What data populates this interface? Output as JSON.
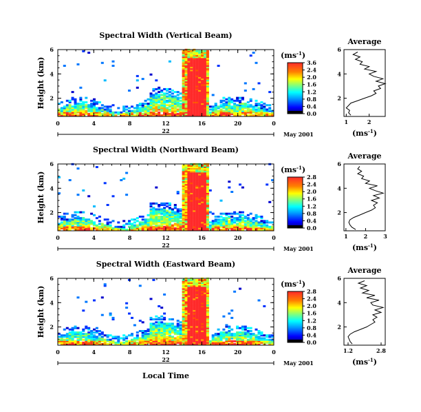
{
  "chart_data": [
    {
      "type": "heatmap",
      "title": "Spectral Width (Vertical Beam)",
      "ylabel": "Height (km)",
      "x_ticks": [
        "0",
        "4",
        "8",
        "12",
        "16",
        "20",
        "0"
      ],
      "y_ticks": [
        "2",
        "4",
        "6"
      ],
      "xlim": [
        0,
        24
      ],
      "ylim": [
        0.5,
        6.0
      ],
      "date_day": "22",
      "date_month": "May 2001",
      "colorbar_unit": "(ms",
      "colorbar_unit_exp": "-1",
      "colorbar_ticks": [
        "3.6",
        "2.4",
        "2.0",
        "1.6",
        "1.2",
        "0.8",
        "0.4",
        "0.0"
      ],
      "event_window": [
        13.8,
        16.8
      ],
      "average_profile": {
        "title": "Average",
        "x_ticks": [
          "1",
          "2"
        ],
        "xlim": [
          0.9,
          2.7
        ],
        "xlabel": "(ms",
        "xlabel_exp": "-1",
        "heights": [
          0.6,
          0.8,
          1.0,
          1.2,
          1.4,
          1.6,
          1.8,
          2.0,
          2.2,
          2.4,
          2.6,
          2.8,
          3.0,
          3.2,
          3.4,
          3.6,
          3.8,
          4.0,
          4.2,
          4.4,
          4.6,
          4.8,
          5.0,
          5.2,
          5.4,
          5.6,
          5.8
        ],
        "values": [
          1.2,
          1.1,
          1.15,
          1.0,
          1.1,
          1.2,
          1.5,
          1.8,
          2.1,
          2.3,
          2.2,
          2.5,
          2.4,
          2.7,
          2.3,
          2.6,
          2.2,
          2.0,
          2.3,
          1.8,
          2.0,
          1.6,
          1.7,
          1.4,
          1.6,
          1.3,
          1.5
        ]
      }
    },
    {
      "type": "heatmap",
      "title": "Spectral Width (Northward Beam)",
      "ylabel": "Height (km)",
      "x_ticks": [
        "0",
        "4",
        "8",
        "12",
        "16",
        "20",
        "0"
      ],
      "y_ticks": [
        "2",
        "4",
        "6"
      ],
      "xlim": [
        0,
        24
      ],
      "ylim": [
        0.5,
        6.0
      ],
      "date_day": "22",
      "date_month": "May 2001",
      "colorbar_unit": "(ms",
      "colorbar_unit_exp": "-1",
      "colorbar_ticks": [
        "2.8",
        "2.4",
        "2.0",
        "1.6",
        "1.2",
        "0.8",
        "0.4",
        "0.0"
      ],
      "event_window": [
        13.8,
        16.8
      ],
      "average_profile": {
        "title": "Average",
        "x_ticks": [
          "1",
          "2",
          "3"
        ],
        "xlim": [
          0.9,
          3.0
        ],
        "xlabel": "(ms",
        "xlabel_exp": "-1",
        "heights": [
          0.6,
          0.8,
          1.0,
          1.2,
          1.4,
          1.6,
          1.8,
          2.0,
          2.2,
          2.4,
          2.6,
          2.8,
          3.0,
          3.2,
          3.4,
          3.6,
          3.8,
          4.0,
          4.2,
          4.4,
          4.6,
          4.8,
          5.0,
          5.2,
          5.4,
          5.6,
          5.8
        ],
        "values": [
          1.5,
          1.3,
          1.2,
          1.15,
          1.2,
          1.4,
          1.7,
          2.0,
          2.3,
          2.5,
          2.4,
          2.6,
          2.3,
          2.7,
          2.4,
          2.9,
          2.5,
          2.2,
          2.6,
          2.0,
          2.2,
          1.8,
          1.9,
          1.6,
          1.8,
          1.6,
          1.7
        ]
      }
    },
    {
      "type": "heatmap",
      "title": "Spectral Width (Eastward Beam)",
      "ylabel": "Height (km)",
      "xlabel": "Local Time",
      "x_ticks": [
        "0",
        "4",
        "8",
        "12",
        "16",
        "20",
        "0"
      ],
      "y_ticks": [
        "2",
        "4",
        "6"
      ],
      "xlim": [
        0,
        24
      ],
      "ylim": [
        0.5,
        6.0
      ],
      "date_day": "22",
      "date_month": "May 2001",
      "colorbar_unit": "(ms",
      "colorbar_unit_exp": "-1",
      "colorbar_ticks": [
        "2.8",
        "2.4",
        "2.0",
        "1.6",
        "1.2",
        "0.8",
        "0.4",
        "0.0"
      ],
      "event_window": [
        13.8,
        16.8
      ],
      "average_profile": {
        "title": "Average",
        "x_ticks": [
          "1.2",
          "2.8"
        ],
        "xlim": [
          1.0,
          3.0
        ],
        "xlabel": "(ms",
        "xlabel_exp": "-1",
        "heights": [
          0.6,
          0.8,
          1.0,
          1.2,
          1.4,
          1.6,
          1.8,
          2.0,
          2.2,
          2.4,
          2.6,
          2.8,
          3.0,
          3.2,
          3.4,
          3.6,
          3.8,
          4.0,
          4.2,
          4.4,
          4.6,
          4.8,
          5.0,
          5.2,
          5.4,
          5.6,
          5.8
        ],
        "values": [
          1.4,
          1.3,
          1.25,
          1.2,
          1.3,
          1.5,
          1.8,
          2.1,
          2.3,
          2.5,
          2.4,
          2.6,
          2.4,
          2.8,
          2.5,
          2.9,
          2.4,
          2.3,
          2.7,
          2.1,
          2.5,
          1.9,
          2.2,
          1.8,
          2.1,
          1.7,
          2.0
        ]
      }
    }
  ]
}
